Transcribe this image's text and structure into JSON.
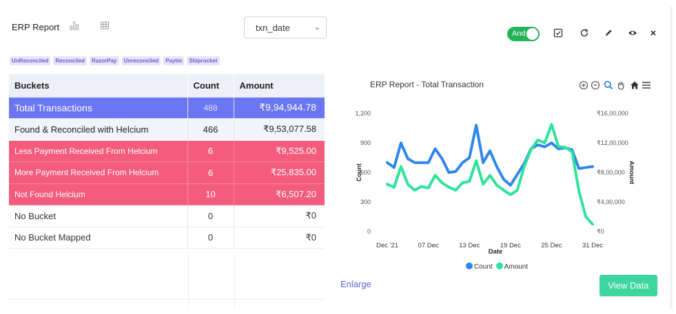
{
  "header": {
    "title": "ERP Report",
    "select": {
      "value": "txn_date"
    },
    "icons": [
      "bar-chart-icon",
      "table-icon"
    ]
  },
  "tags": [
    "UnReconciled",
    "Reconciled",
    "RazorPay",
    "Unreconciled",
    "Paytm",
    "Shiprocket"
  ],
  "table": {
    "headers": {
      "bucket": "Buckets",
      "count": "Count",
      "amount": "Amount"
    },
    "rows": [
      {
        "bucket": "Total  Transactions",
        "count": "488",
        "amount": "₹9,94,944.78"
      },
      {
        "bucket": "Found & Reconciled with Helcium",
        "count": "466",
        "amount": "₹9,53,077.58"
      },
      {
        "bucket": "Less Payment Received From Helcium",
        "count": "6",
        "amount": "₹9,525.00"
      },
      {
        "bucket": "More Payment Received From Helcium",
        "count": "6",
        "amount": "₹25,835.00"
      },
      {
        "bucket": "Not Found Helcium",
        "count": "10",
        "amount": "₹6,507.20"
      },
      {
        "bucket": "No Bucket",
        "count": "0",
        "amount": "₹0"
      },
      {
        "bucket": "No Bucket Mapped",
        "count": "0",
        "amount": "₹0"
      }
    ]
  },
  "toolbar": {
    "toggle_label": "And",
    "toggle_on": true
  },
  "footer": {
    "enlarge": "Enlarge",
    "view_data": "View Data"
  },
  "colors": {
    "count": "#2f86eb",
    "amount": "#2ee39a",
    "total_row": "#6b76f3",
    "red_row": "#f45c7d",
    "toggle": "#23b35a",
    "button": "#3dd6a0"
  },
  "chart_data": {
    "type": "line",
    "title": "ERP Report - Total Transaction",
    "xlabel": "Date",
    "ylabel_left": "Count",
    "ylabel_right": "Amount",
    "x_ticks": [
      "Dec '21",
      "07 Dec",
      "13 Dec",
      "19 Dec",
      "25 Dec",
      "31 Dec"
    ],
    "y_left_ticks": [
      "0",
      "300",
      "600",
      "900",
      "1,200"
    ],
    "y_right_ticks": [
      "₹0",
      "₹4,00,000",
      "₹8,00,000",
      "₹12,00,000",
      "₹16,00,000"
    ],
    "y_left_range": [
      0,
      1200
    ],
    "y_right_range": [
      0,
      1600000
    ],
    "x": [
      "2021-12-01",
      "2021-12-02",
      "2021-12-03",
      "2021-12-04",
      "2021-12-05",
      "2021-12-06",
      "2021-12-07",
      "2021-12-08",
      "2021-12-09",
      "2021-12-10",
      "2021-12-11",
      "2021-12-12",
      "2021-12-13",
      "2021-12-14",
      "2021-12-15",
      "2021-12-16",
      "2021-12-17",
      "2021-12-18",
      "2021-12-19",
      "2021-12-20",
      "2021-12-21",
      "2021-12-22",
      "2021-12-23",
      "2021-12-24",
      "2021-12-25",
      "2021-12-26",
      "2021-12-27",
      "2021-12-28",
      "2021-12-29",
      "2021-12-30",
      "2021-12-31"
    ],
    "series": [
      {
        "name": "Count",
        "axis": "left",
        "values": [
          700,
          650,
          900,
          740,
          700,
          700,
          700,
          840,
          740,
          600,
          610,
          700,
          750,
          1080,
          700,
          820,
          660,
          530,
          470,
          580,
          690,
          840,
          880,
          860,
          900,
          840,
          850,
          830,
          640,
          650,
          660
        ]
      },
      {
        "name": "Amount",
        "axis": "right",
        "values": [
          640000,
          600000,
          880000,
          640000,
          560000,
          610000,
          590000,
          760000,
          660000,
          600000,
          560000,
          660000,
          680000,
          960000,
          640000,
          760000,
          630000,
          560000,
          500000,
          560000,
          880000,
          1110000,
          1240000,
          1200000,
          1450000,
          1150000,
          1140000,
          1080000,
          550000,
          200000,
          100000
        ]
      }
    ],
    "legend": "bottom-center",
    "grid": true
  }
}
